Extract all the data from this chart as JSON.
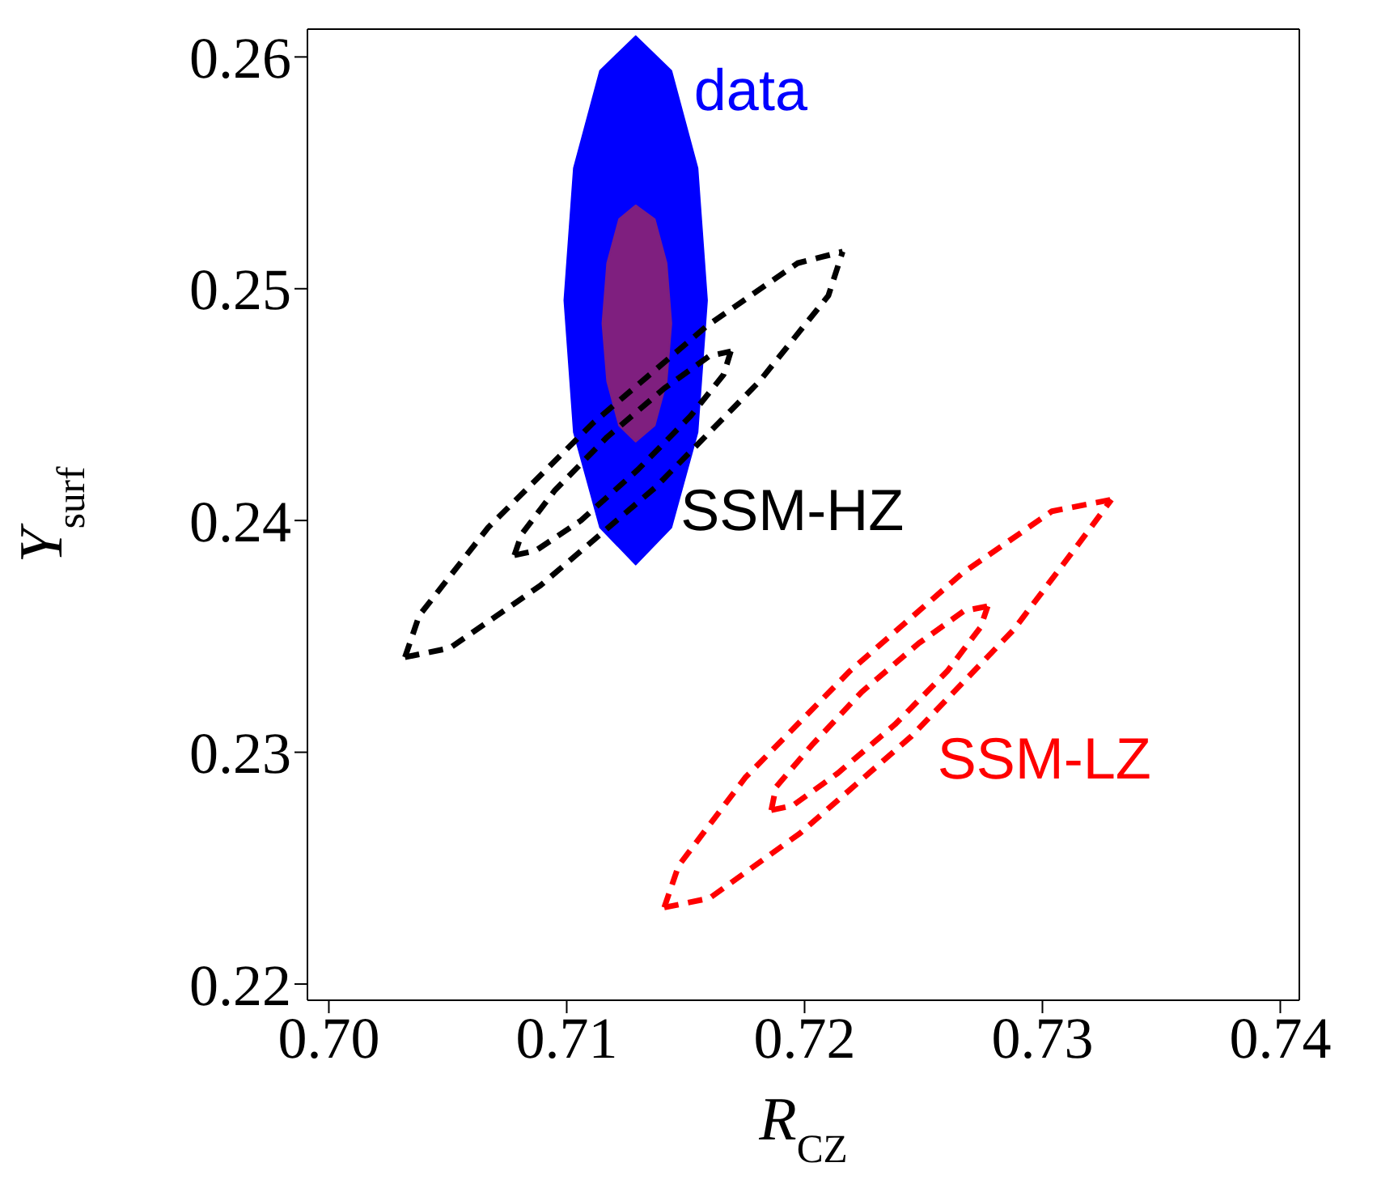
{
  "chart_data": {
    "type": "line",
    "xlabel": "R$_{CZ}$",
    "ylabel": "Y$_{surf}$",
    "xlim": [
      0.6991,
      0.7408
    ],
    "ylim": [
      0.2193,
      0.2612
    ],
    "xticks": [
      {
        "value": 0.7,
        "label": "0.70"
      },
      0.71,
      0.72,
      0.73,
      0.74
    ],
    "yticks": [
      0.22,
      0.23,
      0.24,
      0.25,
      0.26
    ],
    "grid": false,
    "legend": false,
    "marker": "none",
    "series": [
      {
        "name": "data",
        "type": "area",
        "color": "#0000ff",
        "line_style": "solid",
        "x": [
          0.7159,
          0.7155,
          0.7144,
          0.7129,
          0.7114,
          0.7103,
          0.7099,
          0.7103,
          0.7114,
          0.7129,
          0.7144,
          0.7155
        ],
        "values": [
          0.2495,
          0.2552,
          0.2594,
          0.2609,
          0.2594,
          0.2552,
          0.2495,
          0.2438,
          0.2397,
          0.2381,
          0.2397,
          0.2438
        ]
      },
      {
        "type": "area",
        "color": "#7f1f7f",
        "line_style": "solid",
        "x": [
          0.7144,
          0.7142,
          0.7137,
          0.7129,
          0.7122,
          0.7117,
          0.7115,
          0.7117,
          0.7122,
          0.7129,
          0.7137,
          0.7142
        ],
        "values": [
          0.2485,
          0.2511,
          0.253,
          0.2536,
          0.253,
          0.2511,
          0.2485,
          0.246,
          0.2441,
          0.2434,
          0.2441,
          0.246
        ]
      },
      {
        "color": "#000000",
        "line_style": "dashed",
        "x": [
          0.7032,
          0.7038,
          0.7067,
          0.7111,
          0.7159,
          0.7197,
          0.7216
        ],
        "values": [
          0.2341,
          0.2359,
          0.2397,
          0.2442,
          0.2484,
          0.2511,
          0.2516
        ]
      },
      {
        "name": "SSM-HZ",
        "color": "#000000",
        "line_style": "dashed",
        "x": [
          0.7032,
          0.7051,
          0.7089,
          0.7137,
          0.7181,
          0.721,
          0.7216
        ],
        "values": [
          0.2341,
          0.2345,
          0.2372,
          0.2414,
          0.246,
          0.2497,
          0.2516
        ]
      },
      {
        "color": "#000000",
        "line_style": "dashed",
        "x": [
          0.7078,
          0.7081,
          0.7095,
          0.7117,
          0.7141,
          0.716,
          0.7169
        ],
        "values": [
          0.2385,
          0.2394,
          0.2413,
          0.2436,
          0.2457,
          0.2471,
          0.2473
        ]
      },
      {
        "color": "#000000",
        "line_style": "dashed",
        "x": [
          0.7078,
          0.7087,
          0.7106,
          0.713,
          0.7152,
          0.7166,
          0.7169
        ],
        "values": [
          0.2385,
          0.2387,
          0.24,
          0.2422,
          0.2445,
          0.2463,
          0.2473
        ]
      },
      {
        "color": "#ff0000",
        "line_style": "dashed",
        "x": [
          0.7141,
          0.7147,
          0.7175,
          0.7219,
          0.7266,
          0.7304,
          0.7329
        ],
        "values": [
          0.2233,
          0.2251,
          0.2289,
          0.2335,
          0.2377,
          0.2404,
          0.2409
        ]
      },
      {
        "name": "SSM-LZ",
        "color": "#ff0000",
        "line_style": "dashed",
        "x": [
          0.7141,
          0.716,
          0.7198,
          0.7245,
          0.7288,
          0.7316,
          0.7329
        ],
        "values": [
          0.2233,
          0.2237,
          0.2265,
          0.2307,
          0.2353,
          0.2391,
          0.2409
        ]
      },
      {
        "color": "#ff0000",
        "line_style": "dashed",
        "x": [
          0.7186,
          0.7188,
          0.7203,
          0.7224,
          0.7248,
          0.7267,
          0.7277
        ],
        "values": [
          0.2275,
          0.2285,
          0.2303,
          0.2326,
          0.2347,
          0.2361,
          0.2363
        ]
      },
      {
        "color": "#ff0000",
        "line_style": "dashed",
        "x": [
          0.7186,
          0.7195,
          0.7214,
          0.7238,
          0.726,
          0.7274,
          0.7277
        ],
        "values": [
          0.2275,
          0.2277,
          0.2291,
          0.2312,
          0.2335,
          0.2354,
          0.2363
        ]
      }
    ]
  }
}
